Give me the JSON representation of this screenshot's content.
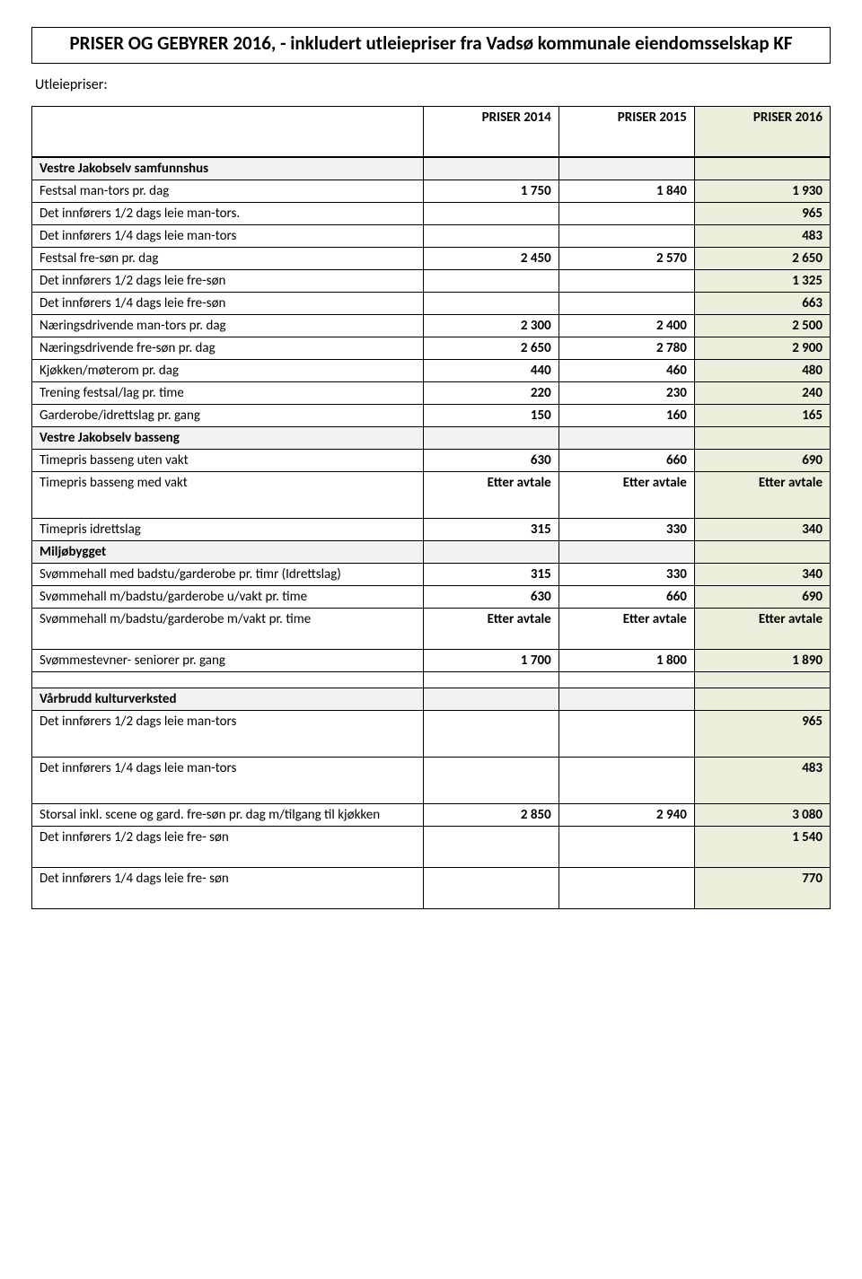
{
  "title": "PRISER OG GEBYRER 2016, - inkludert utleiepriser fra Vadsø kommunale eiendomsselskap KF",
  "subheading": "Utleiepriser:",
  "headers": {
    "y2014": "PRISER  2014",
    "y2015": "PRISER 2015",
    "y2016": "PRISER 2016"
  },
  "rows": [
    {
      "type": "section",
      "label": "Vestre Jakobselv samfunnshus"
    },
    {
      "label": "Festsal man-tors pr. dag",
      "y2014": "1 750",
      "y2015": "1 840",
      "y2016": "1 930"
    },
    {
      "label": "Det innførers 1/2 dags leie man-tors.",
      "y2016": "965"
    },
    {
      "label": "Det innførers 1/4 dags leie man-tors",
      "y2016": "483"
    },
    {
      "label": "Festsal fre-søn pr. dag",
      "y2014": "2 450",
      "y2015": "2 570",
      "y2016": "2 650"
    },
    {
      "label": "Det innførers 1/2 dags leie fre-søn",
      "y2016": "1 325"
    },
    {
      "label": "Det innførers 1/4 dags leie fre-søn",
      "y2016": "663"
    },
    {
      "label": "Næringsdrivende man-tors pr. dag",
      "y2014": "2 300",
      "y2015": "2 400",
      "y2016": "2 500"
    },
    {
      "label": "Næringsdrivende fre-søn pr. dag",
      "y2014": "2 650",
      "y2015": "2 780",
      "y2016": "2 900"
    },
    {
      "label": "Kjøkken/møterom pr. dag",
      "y2014": "440",
      "y2015": "460",
      "y2016": "480"
    },
    {
      "label": "Trening festsal/lag pr. time",
      "y2014": "220",
      "y2015": "230",
      "y2016": "240"
    },
    {
      "label": "Garderobe/idrettslag pr. gang",
      "y2014": "150",
      "y2015": "160",
      "y2016": "165"
    },
    {
      "type": "section",
      "label": "Vestre Jakobselv basseng"
    },
    {
      "label": "Timepris basseng uten vakt",
      "y2014": "630",
      "y2015": "660",
      "y2016": "690"
    },
    {
      "label": "Timepris basseng med vakt",
      "y2014": "Etter avtale",
      "y2015": "Etter avtale",
      "y2016": "Etter avtale",
      "cls": "tall"
    },
    {
      "label": "Timepris idrettslag",
      "y2014": "315",
      "y2015": "330",
      "y2016": "340"
    },
    {
      "type": "section",
      "label": "Miljøbygget"
    },
    {
      "label": "Svømmehall med badstu/garderobe pr. timr (Idrettslag)",
      "y2014": "315",
      "y2015": "330",
      "y2016": "340"
    },
    {
      "label": "Svømmehall m/badstu/garderobe u/vakt pr. time",
      "y2014": "630",
      "y2015": "660",
      "y2016": "690"
    },
    {
      "label": "Svømmehall m/badstu/garderobe m/vakt pr. time",
      "y2014": "Etter avtale",
      "y2015": "Etter avtale",
      "y2016": "Etter avtale",
      "cls": "tall2"
    },
    {
      "label": "Svømmestevner- seniorer pr. gang",
      "y2014": "1 700",
      "y2015": "1 800",
      "y2016": "1 890"
    },
    {
      "type": "spacer"
    },
    {
      "type": "section",
      "label": "Vårbrudd kulturverksted"
    },
    {
      "label": "Det innførers 1/2 dags leie man-tors",
      "y2016": "965",
      "cls": "tall"
    },
    {
      "label": "Det innførers 1/4 dags leie man-tors",
      "y2016": "483",
      "cls": "tall"
    },
    {
      "label": "Storsal inkl. scene og gard. fre-søn pr. dag m/tilgang til kjøkken",
      "y2014": "2 850",
      "y2015": "2 940",
      "y2016": "3 080"
    },
    {
      "label": "Det innførers 1/2 dags leie fre- søn",
      "y2016": "1 540",
      "cls": "tall2"
    },
    {
      "label": "Det innførers 1/4 dags leie fre- søn",
      "y2016": "770",
      "cls": "tall2"
    }
  ]
}
